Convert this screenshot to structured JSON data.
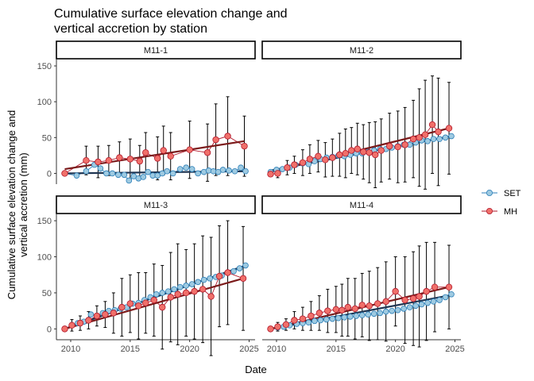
{
  "chart_data": {
    "type": "line",
    "title": "Cumulative surface elevation change and vertical accretion by station",
    "title_lines": [
      "Cumulative surface elevation change and",
      "vertical accretion by station"
    ],
    "xlabel": "Date",
    "ylabel": "Cumulative surface elevation change and vertical accretion (mm)",
    "ylabel_lines": [
      "Cumulative surface elevation change and",
      "vertical accretion (mm)"
    ],
    "xlim": [
      2008.8,
      2025.5
    ],
    "ylim": [
      -15,
      160
    ],
    "x_ticks": [
      2010,
      2015,
      2020,
      2025
    ],
    "y_ticks": [
      0,
      50,
      100,
      150
    ],
    "grid": false,
    "legend_position": "right",
    "legend": [
      {
        "name": "SET",
        "marker_fill": "#9ecae1",
        "marker_edge": "#2c7fb8",
        "line_color": "#2c7fb8"
      },
      {
        "name": "MH",
        "marker_fill": "#f0706a",
        "marker_edge": "#b2182b",
        "line_color": "#b2182b"
      }
    ],
    "colors": {
      "set_line": "#2c7fb8",
      "set_marker": "#9ecae1",
      "mh_line": "#b2182b",
      "mh_marker": "#f0706a",
      "set_trend": "#1f3552",
      "mh_trend": "#7b1a1a"
    },
    "panels": [
      {
        "station": "M11-1",
        "set": {
          "x": [
            2009.5,
            2010.5,
            2011.3,
            2012.0,
            2012.5,
            2013.0,
            2013.5,
            2014.0,
            2014.5,
            2014.9,
            2015.3,
            2015.7,
            2016.1,
            2016.5,
            2016.9,
            2017.3,
            2017.7,
            2018.1,
            2018.6,
            2019.2,
            2019.7,
            2020.2,
            2020.7,
            2021.2,
            2021.6,
            2022.0,
            2022.4,
            2022.8,
            2023.3,
            2023.8,
            2024.3,
            2024.7
          ],
          "y": [
            0,
            -3,
            3,
            12,
            7,
            0,
            0,
            -2,
            -2,
            -10,
            -4,
            -7,
            -5,
            2,
            -3,
            -3,
            0,
            3,
            0,
            6,
            8,
            6,
            0,
            2,
            4,
            3,
            2,
            5,
            4,
            3,
            8,
            3
          ],
          "trend": [
            [
              2009.5,
              0
            ],
            [
              2024.7,
              3
            ]
          ]
        },
        "mh": {
          "x": [
            2009.5,
            2011.3,
            2012.3,
            2013.2,
            2014.1,
            2015.0,
            2015.8,
            2016.3,
            2017.3,
            2017.8,
            2018.4,
            2020.0,
            2021.5,
            2022.2,
            2023.2,
            2024.6
          ],
          "y": [
            0,
            18,
            16,
            18,
            22,
            20,
            17,
            29,
            21,
            32,
            24,
            33,
            29,
            47,
            52,
            38
          ],
          "err": [
            0,
            20,
            22,
            21,
            22,
            28,
            22,
            28,
            30,
            34,
            33,
            40,
            40,
            50,
            55,
            42
          ],
          "trend": [
            [
              2009.5,
              6
            ],
            [
              2024.6,
              45
            ]
          ]
        }
      },
      {
        "station": "M11-2",
        "set": {
          "x": [
            2009.5,
            2010.0,
            2010.5,
            2011.1,
            2011.6,
            2012.2,
            2012.7,
            2013.2,
            2013.7,
            2014.2,
            2014.7,
            2015.2,
            2015.7,
            2016.2,
            2016.7,
            2017.2,
            2017.7,
            2018.2,
            2018.7,
            2019.2,
            2019.7,
            2020.2,
            2020.7,
            2021.2,
            2021.7,
            2022.2,
            2022.7,
            2023.2,
            2023.7,
            2024.2,
            2024.7
          ],
          "y": [
            2,
            5,
            6,
            8,
            12,
            14,
            13,
            17,
            20,
            22,
            23,
            25,
            24,
            26,
            28,
            28,
            30,
            32,
            34,
            34,
            36,
            38,
            40,
            40,
            43,
            46,
            45,
            48,
            48,
            50,
            52
          ],
          "trend": [
            [
              2009.5,
              4
            ],
            [
              2024.7,
              52
            ]
          ]
        },
        "mh": {
          "x": [
            2009.5,
            2010.1,
            2010.9,
            2011.5,
            2012.2,
            2012.8,
            2013.5,
            2014.1,
            2014.7,
            2015.3,
            2015.8,
            2016.3,
            2016.8,
            2017.3,
            2017.8,
            2018.3,
            2018.8,
            2019.5,
            2020.2,
            2020.8,
            2021.5,
            2022.0,
            2022.5,
            2023.1,
            2023.6,
            2024.5
          ],
          "y": [
            -1,
            0,
            8,
            12,
            15,
            20,
            24,
            19,
            22,
            26,
            28,
            32,
            34,
            30,
            29,
            26,
            32,
            38,
            37,
            40,
            48,
            50,
            54,
            68,
            58,
            63
          ],
          "err": [
            0,
            6,
            10,
            12,
            18,
            20,
            22,
            24,
            26,
            30,
            34,
            32,
            36,
            38,
            42,
            46,
            44,
            46,
            50,
            52,
            54,
            68,
            76,
            68,
            75,
            64
          ],
          "trend": [
            [
              2009.5,
              2
            ],
            [
              2024.5,
              63
            ]
          ]
        }
      },
      {
        "station": "M11-3",
        "set": {
          "x": [
            2009.5,
            2010.1,
            2010.6,
            2011.1,
            2011.7,
            2012.2,
            2012.7,
            2013.2,
            2013.7,
            2014.2,
            2014.7,
            2015.2,
            2015.7,
            2016.2,
            2016.7,
            2017.2,
            2017.7,
            2018.2,
            2018.7,
            2019.2,
            2019.7,
            2020.2,
            2020.7,
            2021.2,
            2021.7,
            2022.2,
            2022.7,
            2023.2,
            2023.7,
            2024.2,
            2024.7
          ],
          "y": [
            0,
            5,
            8,
            10,
            20,
            18,
            22,
            25,
            26,
            28,
            30,
            35,
            36,
            40,
            44,
            48,
            50,
            52,
            55,
            58,
            60,
            62,
            65,
            68,
            70,
            72,
            74,
            78,
            80,
            84,
            88
          ],
          "trend": [
            [
              2009.5,
              0
            ],
            [
              2024.7,
              88
            ]
          ]
        },
        "mh": {
          "x": [
            2009.5,
            2010.1,
            2010.8,
            2011.5,
            2012.2,
            2012.9,
            2013.6,
            2014.3,
            2015.0,
            2015.7,
            2016.3,
            2017.0,
            2017.7,
            2018.4,
            2019.0,
            2019.7,
            2020.4,
            2021.1,
            2021.8,
            2022.5,
            2023.2,
            2024.5
          ],
          "y": [
            0,
            5,
            8,
            12,
            18,
            20,
            22,
            30,
            35,
            32,
            36,
            40,
            30,
            44,
            48,
            50,
            52,
            55,
            45,
            73,
            78,
            70
          ],
          "err": [
            0,
            8,
            10,
            12,
            14,
            18,
            28,
            40,
            40,
            46,
            42,
            50,
            58,
            62,
            70,
            60,
            66,
            74,
            82,
            70,
            72,
            72
          ],
          "trend": [
            [
              2009.5,
              0
            ],
            [
              2024.5,
              70
            ]
          ]
        }
      },
      {
        "station": "M11-4",
        "set": {
          "x": [
            2009.5,
            2010.1,
            2010.6,
            2011.1,
            2011.7,
            2012.2,
            2012.7,
            2013.2,
            2013.7,
            2014.2,
            2014.7,
            2015.2,
            2015.7,
            2016.2,
            2016.7,
            2017.2,
            2017.7,
            2018.2,
            2018.7,
            2019.2,
            2019.7,
            2020.2,
            2020.7,
            2021.2,
            2021.7,
            2022.2,
            2022.7,
            2023.2,
            2023.7,
            2024.2,
            2024.7
          ],
          "y": [
            0,
            2,
            3,
            5,
            7,
            8,
            9,
            11,
            12,
            13,
            14,
            15,
            16,
            17,
            18,
            19,
            20,
            21,
            22,
            24,
            25,
            26,
            28,
            30,
            32,
            34,
            36,
            38,
            40,
            44,
            48
          ],
          "trend": [
            [
              2009.5,
              0
            ],
            [
              2024.7,
              47
            ]
          ]
        },
        "mh": {
          "x": [
            2009.5,
            2010.1,
            2010.8,
            2011.5,
            2012.2,
            2012.9,
            2013.6,
            2014.3,
            2015.0,
            2015.5,
            2016.0,
            2016.6,
            2017.2,
            2017.8,
            2018.5,
            2019.2,
            2020.0,
            2020.8,
            2021.5,
            2022.0,
            2022.6,
            2023.3,
            2024.5
          ],
          "y": [
            0,
            3,
            6,
            12,
            14,
            18,
            22,
            25,
            27,
            26,
            30,
            28,
            33,
            32,
            35,
            38,
            52,
            40,
            42,
            45,
            52,
            58,
            58
          ],
          "err": [
            0,
            6,
            8,
            12,
            16,
            20,
            24,
            30,
            32,
            36,
            40,
            42,
            44,
            48,
            50,
            55,
            48,
            60,
            65,
            70,
            68,
            62,
            58
          ],
          "trend": [
            [
              2009.5,
              0
            ],
            [
              2024.5,
              58
            ]
          ]
        }
      }
    ]
  }
}
